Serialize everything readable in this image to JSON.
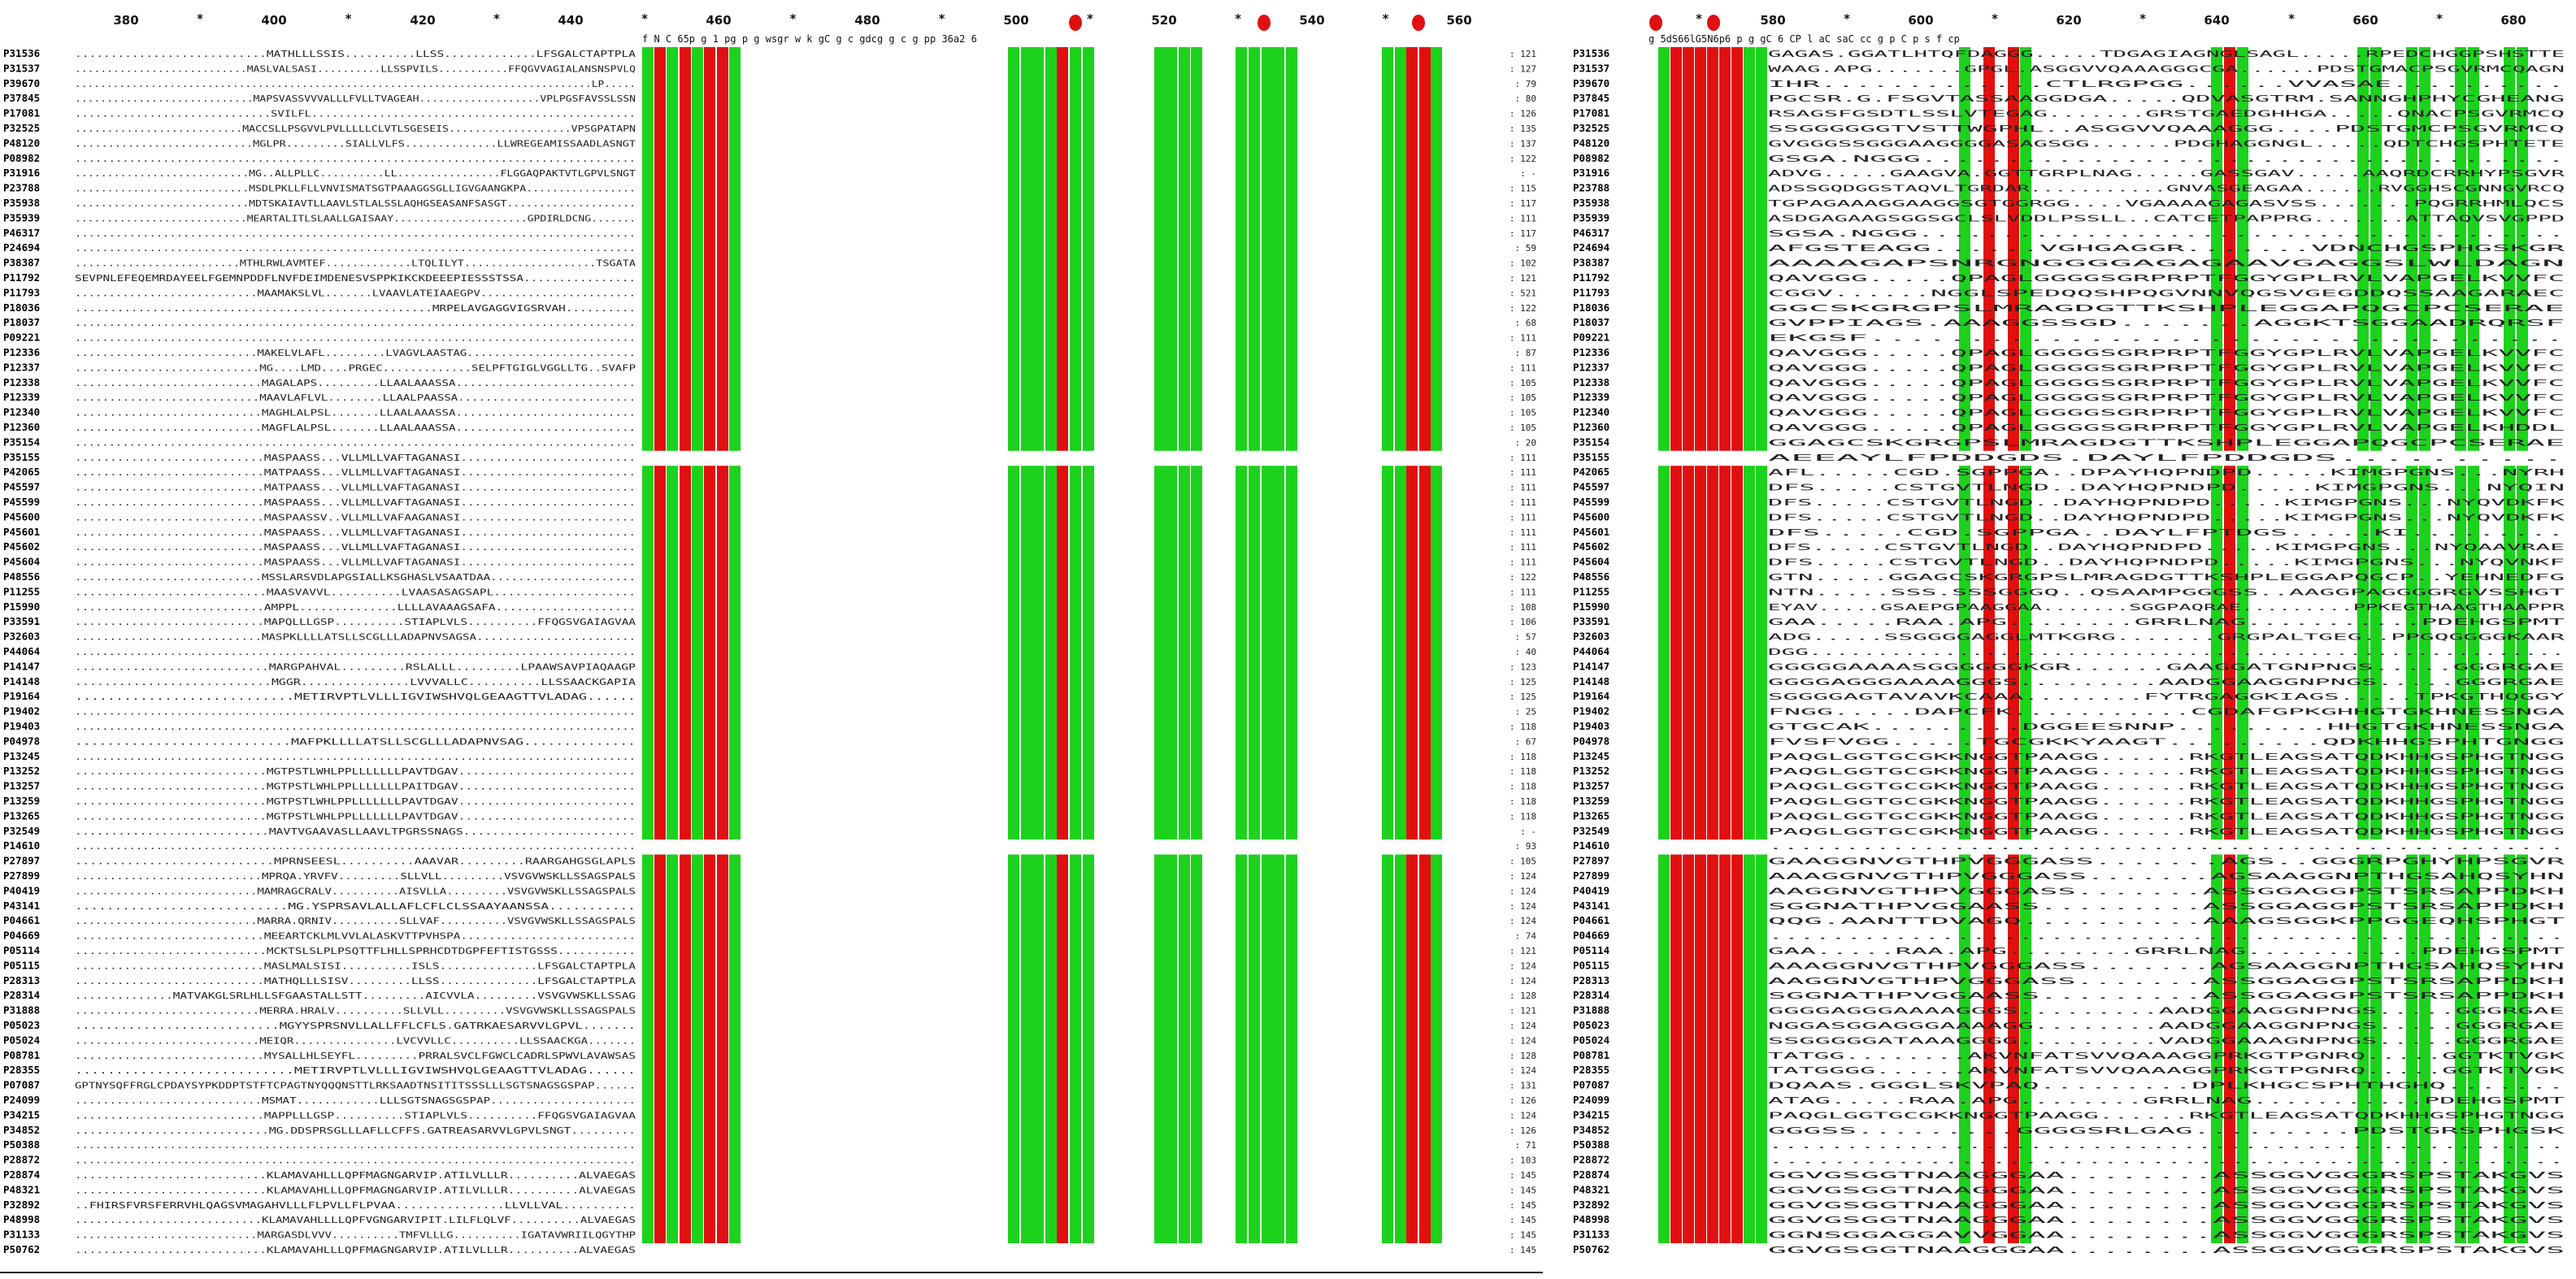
{
  "left_panel": {
    "positions": [
      "380",
      "400",
      "420",
      "440",
      "460",
      "480",
      "500",
      "520",
      "540",
      "560"
    ],
    "annotation": "f  N C   65p        g  1 pg     p g  wsgr w k gC        g  c  gdcg  g  c g   pp 36a2  6",
    "accessions": [
      "P31536",
      "P31537",
      "P39670",
      "P37845",
      "P17081",
      "P32525",
      "P48120",
      "P08982",
      "P31916",
      "P23788",
      "P35938",
      "P35939",
      "P46317",
      "P24694",
      "P38387",
      "P11792",
      "P11793",
      "P18036",
      "P18037",
      "P09221",
      "P12336",
      "P12337",
      "P12338",
      "P12339",
      "P12340",
      "P12360",
      "P35154",
      "P35155",
      "P42065",
      "P45597",
      "P45599",
      "P45600",
      "P45601",
      "P45602",
      "P45604",
      "P48556",
      "P11255",
      "P15990",
      "P33591",
      "P32603",
      "P44064",
      "P14147",
      "P14148",
      "P19164",
      "P19402",
      "P19403",
      "P04978",
      "P13245",
      "P13252",
      "P13257",
      "P13259",
      "P13265",
      "P32549",
      "P14610",
      "P27897",
      "P27899",
      "P40419",
      "P43141",
      "P04661",
      "P04669",
      "P05114",
      "P05115",
      "P28313",
      "P28314",
      "P31888",
      "P05023",
      "P05024",
      "P08781",
      "P28355",
      "P07087",
      "P24099",
      "P34215",
      "P34852",
      "P50388",
      "P28872",
      "P28874",
      "P48321",
      "P32892",
      "P48998",
      "P31133",
      "P50762"
    ],
    "counts": [
      "121",
      "127",
      "79",
      "80",
      "126",
      "135",
      "137",
      "122",
      "-",
      "115",
      "117",
      "111",
      "117",
      "59",
      "102",
      "121",
      "521",
      "122",
      "68",
      "111",
      "87",
      "111",
      "105",
      "105",
      "105",
      "105",
      "20",
      "111",
      "111",
      "111",
      "111",
      "111",
      "111",
      "111",
      "111",
      "122",
      "111",
      "108",
      "106",
      "57",
      "40",
      "123",
      "125",
      "125",
      "25",
      "118",
      "67",
      "118",
      "118",
      "118",
      "118",
      "118",
      "-",
      "93",
      "105",
      "124",
      "124",
      "124",
      "124",
      "74",
      "121",
      "124",
      "124",
      "128",
      "121",
      "124",
      "124",
      "128",
      "124",
      "131",
      "126",
      "124",
      "126",
      "71",
      "103",
      "145",
      "145",
      "145",
      "145",
      "145",
      "145",
      "-"
    ],
    "sequences": [
      "...........................MATHLLLSSIS..........LLSS.............LFSGALCTAPTPLA",
      "...........................MASLVALSASI..........LLSSPVILS...........FFQGVVAGIALANSNSPVLQ",
      "..................................................................................LP.....",
      "............................MAPSVASSVVVALLLFVLLTVAGEAH...................VPLPGSFAVSSLSSN",
      ".............................SVILFL................................................",
      "..........................MACCSLLPSGVVLPVLLLLLCLVTLSGESEIS...................VPSGPATAPN",
      "...........................MGLPR.........SIALLVLFS..............LLWREGEAMISSAADLASNGT",
      "...................................................................................",
      "...........................MG..ALLPLLC..........LL................FLGGAQPAKTVTLGPVLSNGT",
      "...........................MSDLPKLLFLLVNVISMATSGTPAAAGGSGLLIGVGAANGKPA.................",
      "...........................MDTSKAIAVTLLAAVLSTLALSSLAQHGSEASANFSASGT....................",
      "...........................MEARTALITLSLAALLGAISAAY.....................GPDIRLDCNG.......",
      "...................................................................................",
      "...................................................................................",
      ".........................MTHLRWLAVMTEF.............LTQLILYT....................TSGATA",
      "SEVPNLEFEQEMRDAYEELFGEMNPDDFLNVFDEIMDENESVSPPKIKCKDEEEPIESSSTSSA................",
      "...........................MAAMAKSLVL.......LVAAVLATEIAAEGPV.......................",
      "...................................................MRPELAVGAGGVIGSRVAH..........",
      "...................................................................................",
      "...................................................................................",
      "...........................MAKELVLAFL.........LVAGVLAASTAG.........................",
      "...........................MG....LMD....PRGEC.............SELPFTGIGLVGGLLTG..SVAFP",
      "...........................MAGALAPS.........LLAALAAASSA..........................",
      "...........................MAAVLAFLVL........LLAALPAASSA..........................",
      "...........................MAGHLALPSL.......LLAALAAASSA..........................",
      "...........................MAGFLALPSL.......LLAALAAASSA..........................",
      "...................................................................................",
      "...........................MASPAASS...VLLMLLVAFTAGANASI.........................",
      "...........................MATPAASS...VLLMLLVAFTAGANASI.........................",
      "...........................MATPAASS...VLLMLLVAFTAGANASI.........................",
      "...........................MASPAASS...VLLMLLVAFTAGANASI.........................",
      "...........................MASPAASSV..VLLMLLVAFAAGANASI.........................",
      "...........................MASPAASS...VLLMLLVAFTAGANASI.........................",
      "...........................MASPAASS...VLLMLLVAFTAGANASI.........................",
      "...........................MASPAASS...VLLMLLVAFTAGANASI.........................",
      "...........................MSSLARSVDLAPGSIALLKSGHASLVSAATDAA.....................",
      "...........................MAASVAVVL..........LVAASASAGSAPL....................",
      "...........................AMPPL..............LLLLAVAAAGSAFA....................",
      "...........................MAPQLLLGSP..........STIAPLVLS..........FFQGSVGAIAGVAA",
      "...........................MASPKLLLLATSLLSCGLLLADAPNVSAGSA.......................",
      "...................................................................................",
      "...........................MARGPAHVAL.........RSLALLL.........LPAAWSAVPIAQAAGP",
      "...........................MGGR...............LVVVALLC..........LLSSAACKGAPIA",
      "...........................METIRVPTLVLLLIGVIWSHVQLGEAAGTTVLADAG......",
      "...................................................................................",
      "...................................................................................",
      "...........................MAFPKLLLLATSLLSCGLLLADAPNVSAG..............",
      "...................................................................................",
      "...........................MGTPSTLWHLPPLLLLLLLPAVTDGAV.........................",
      "...........................MGTPSTLWHLPPLLLLLLLPAITDGAV.........................",
      "...........................MGTPSTLWHLPPLLLLLLLPAVTDGAV.........................",
      "...........................MGTPSTLWHLPPLLLLLLLPAVTDGAV.........................",
      "...........................MAVTVGAAVASLLAAVLTPGRSSNAGS........................",
      "...................................................................................",
      "...........................MPRNSEESL..........AAAVAR.........RAARGAHGSGLAPLS",
      "...........................MPRQA.YRVFV.........SLLVLL.........VSVGVWSKLLSSAGSPALS",
      "...........................MAMRAGCRALV..........AISVLLA.........VSVGVWSKLLSSAGSPALS",
      "...........................MG.YSPRSAVLALLAFLCFLCLSSAAYAANSSA...........",
      "...........................MARRA.QRNIV..........SLLVAF..........VSVGVWSKLLSSAGSPALS",
      "...........................MEEARTCKLMLVVLALASKVTTPVHSPA.........................",
      "...........................MCKTSLSLPLPSQTTFLHLLSPRHCDTDGPFEFTISTGSSS...........",
      "...........................MASLMALSISI..........ISLS..............LFSGALCTAPTPLA",
      "...........................MATHQLLLSISV.........LLSS..............LFSGALCTAPTPLA",
      "..............MATVAKGLSRLHLLSFGAASTALLSTT.........AICVVLA.........VSVGVWSKLLSSAG",
      "...........................MERRA.HRALV..........SLLVLL.........VSVGVWSKLLSSAGSPALS",
      "...........................MGYYSPRSNVLLALLFFLCFLS.GATRKAESARVVLGPVL.......",
      "...........................MEIQR...............LVCVVLLC..........LLSSAACKGA.......",
      "...........................MYSALLHLSEYFL.........PRRALSVCLFGWCLCADRLSPWVLAVAWSAS",
      "...........................METIRVPTLVLLLIGVIWSHVQLGEAAGTTVLADAG......",
      "GPTNYSQFFRGLCPDAYSYPKDDPTSTFTCPAGTNYQQQNSTTLRKSAADTNSITITSSSLLLSGTSNAGSGSPAP......",
      "...........................MSMAT............LLLSGTSNAGSGSPAP.....................",
      "...........................MAPPLLLGSP..........STIAPLVLS..........FFQGSVGAIAGVAA",
      "...........................MG.DDSPRSGLLLAFLLCFFS.GATREASARVVLGPVLSNGT.........",
      "...................................................................................",
      "...................................................................................",
      "...........................KLAMAVAHLLLQPFMAGNGARVIP.ATILVLLLR..........ALVAEGAS",
      "...........................KLAMAVAHLLLQPFMAGNGARVIP.ATILVLLLR..........ALVAEGAS",
      "..FHIRSFVRSFERRVHLQAGSVMAGAHVLLLFLPVLLFLPVAA...............LLVLLVAL..........",
      "...........................KLAMAVAHLLLLQPFVGNGARVIPIT.LILFLQLVF..........ALVAEGAS",
      "...........................MARGASDLVVV..........TMFVLLLG..........IGATAVWRIILQGYTHP",
      "...........................KLAMAVAHLLLQPFMAGNGARVIP.ATILVLLLR..........ALVAEGAS",
      "..................................................................................."
    ],
    "legend_note": ""
  },
  "right_panel": {
    "positions": [
      "580",
      "600",
      "620",
      "640",
      "660",
      "680"
    ],
    "annotation": "g  5dS66lG5N6p6    p         g   gC   6   CP  l                       aC saC           cc g   p C p  s  f   cp",
    "accessions": [
      "P31536",
      "P31537",
      "P39670",
      "P37845",
      "P17081",
      "P32525",
      "P48120",
      "P08982",
      "P31916",
      "P23788",
      "P35938",
      "P35939",
      "P46317",
      "P24694",
      "P38387",
      "P11792",
      "P11793",
      "P18036",
      "P18037",
      "P09221",
      "P12336",
      "P12337",
      "P12338",
      "P12339",
      "P12340",
      "P12360",
      "P35154",
      "P35155",
      "P42065",
      "P45597",
      "P45599",
      "P45600",
      "P45601",
      "P45602",
      "P45604",
      "P48556",
      "P11255",
      "P15990",
      "P33591",
      "P32603",
      "P44064",
      "P14147",
      "P14148",
      "P19164",
      "P19402",
      "P19403",
      "P04978",
      "P13245",
      "P13252",
      "P13257",
      "P13259",
      "P13265",
      "P32549",
      "P14610",
      "P27897",
      "P27899",
      "P40419",
      "P43141",
      "P04661",
      "P04669",
      "P05114",
      "P05115",
      "P28313",
      "P28314",
      "P31888",
      "P05023",
      "P05024",
      "P08781",
      "P28355",
      "P07087",
      "P24099",
      "P34215",
      "P34852",
      "P50388",
      "P28872",
      "P28874",
      "P48321",
      "P32892",
      "P48998",
      "P31133",
      "P50762"
    ],
    "sequences": [
      "GAGAS.GGATLHTQFDAGGG.....TDGAGIAGNGLSAGL.....RPEDCHGGPSHSTTE",
      "WAAG.APG.......GPGL.ASGGVVQAAAGGGCGA......PDSTGMACPSGVRMCQAGN",
      "IHR.............CTLRGPGG......VVASAE..........",
      "PGCSR.G.FSGVTASSAAGGDGA.....QDVASGTRM.SANNGHPHYCGHEANG",
      "RSAGSFGSDTLSSLVTEGAG.......GRSTGAEDGHHGA.....QNACPSGVRMCQ",
      "SSGGGGGGTVSTTWGPHL..ASGGVVQAAAGGG....PDSTGMCPSGVRMCQ",
      "GVGGGSSGGGAAGGGGASAGSGG......PDGHAGGNGL.....QDTCHGSPHTETE",
      "GSGA.NGGG......................................",
      "ADVG.....GAAGVA.GGTTGRPLNAG.....GASSGAV.....AAQRDCRRHYPSGVR",
      "ADSSGQDGGSTAQVLTGRDAR...........GNVASGEAGAA......RVGGHSCGNNGVRCQ",
      "TGPAGAAAGGAAGGSGTGGRGG....VGAAAAGAGASVSS.......PQGRRHMLQCS",
      "ASDGAGAAGSGGSGCLSLVDDLPSSLL..CATCETPAPPRG.......ATTAQVSVGPPD",
      "SGSA.NGGG.......................................",
      "AFGSTEAGG......VGHGAGGR.......VDNCHGSPHGSKGR",
      "AAAAGAPSNRGNGGGGAGAGAAVGAGGSLWLDAGN",
      "QAVGGG.....QPAGLGGGGSGRPRPTFGGYGPLRVLVAPGELKVVFC",
      "CGGV......NGGLSPEDQQSHPQGVNNVQGSVGEGDDQSSAAGARAEC",
      "GGCSKGRGPSLMRAGDGTTKSHPLEGGAPQGCPCSERAE",
      "GVPPIAGS.AAAGGSSGD.......AGGKTSGGAADRQRSF",
      "EKGSF...................................",
      "QAVGGG.....QPAGLGGGGSGRPRPTFGGYGPLRVLVAPGELKVVFC",
      "QAVGGG.....QPAGLGGGGSGRPRPTFGGYGPLRVLVAPGELKVVFC",
      "QAVGGG.....QPAGLGGGGSGRPRPTFGGYGPLRVLVAPGELKVVFC",
      "QAVGGG.....QPAGLGGGGSGRPRPTFGGYGPLRVLVAPGELKVVFC",
      "QAVGGG.....QPAGLGGGGSGRPRPTFGGYGPLRVLVAPGELKVVFC",
      "QAVGGG.....QPAGLGGGGSGRPRPTFGGYGPLRVLVAPGELKHDDL",
      "GGAGCSKGRGPSLMRAGDGTTKSHPLEGGAPQGCPCSERAE",
      "AEEAYLFPDDGDS.DAYLFPDDGDS..........",
      "AFL.....CGD.SGPPGA..DPAYHQPNDPD.....KIMGPGNS...NYRH",
      "DFS.....CSTGVTLNGD..DAYHQPNDPD.....KIMGPGNS...NYQIN",
      "DFS.....CSTGVTLNGD..DAYHQPNDPD.....KIMGPGNS...NYQVDKFK",
      "DFS.....CSTGVTLNGD..DAYHQPNDPD.....KIMGPGNS...NYQVDKFK",
      "DFS.....CGD.SGPPGA..DAYLFPTDGS.....KI.........",
      "DFS.....CSTGVTLNGD..DAYHQPNDPD.....KIMGPGNS...NYQAAVRAE",
      "DFS.....CSTGVTLNGD..DAYHQPNDPD.....KIMGPGNS...NYQVNKF",
      "GTN.....GGAGCSKGRGPSLMRAGDGTTKSHPLEGGAPQGCP..YEHNEDFG",
      "NTN.....SSS.SSSGGGQ..QSAAMPGGGSS..AAGGPAGGGGRGVSSHGT",
      "EYAV.....GSAEPGPAAGGAA.......SGGPAQRAE.........PPKEGTHAAGTHAAPPR",
      "GAA.....RAA.APG........GRRLNAG...........PDEHGSPMT",
      "ADG.....SSGGGGAGGLMTKGRG.......GRGPALTGEG..PPGQGGGGKAAR",
      "DGG........................................................",
      "GGGGGAAAASGGGGGGKGR......GAAGGATGNPNGS.....GGGRGAE",
      "GGGGAGGGAAAAGGGS.........AADGGAAGGNPNGS.....GGGRGAE",
      "SGGGGAGTAVAVKCAAA........FYTRGAGGKIAGS.....TPKGTHQGGY",
      "FNGG.....DAPCFK...........CGDAFGPKGHHGTGKHNESSNGA",
      "GTGCAK.........DGGEESNNP.........HHGTGKHNESSNGA",
      "FVSFVGG.....TGCGKKYAAGT.........QDKHHGSPHTGNGG",
      "PAQGLGGTGCGKKNGGTPAAGG......RKGTLEAGSATQDKHHGSPHGTNGG",
      "PAQGLGGTGCGKKNGGTPAAGG......RKGTLEAGSATQDKHHGSPHGTNGG",
      "PAQGLGGTGCGKKNGGTPAAGG......RKGTLEAGSATQDKHHGSPHGTNGG",
      "PAQGLGGTGCGKKNGGTPAAGG......RKGTLEAGSATQDKHHGSPHGTNGG",
      "PAQGLGGTGCGKKNGGTPAAGG......RKGTLEAGSATQDKHHGSPHGTNGG",
      "PAQGLGGTGCGKKNGGTPAAGG......RKGTLEAGSATQDKHHGSPHGTNGG",
      "....................................................",
      "GAAGGNVGTHPVGGGASS.......AGS..GGGRPGHYHPSGVR",
      "AAAGGNVGTHPVGGGASS.......AGSAAGGNPTHGSAHQSYHN",
      "AAGGNVGTHPVGGGASS.......ASSGGAGGPSTSRSAPPDKH",
      "SGGNATHPVGGAASS.........ASSGGAGGPSTSRSAPPDKH",
      "QQG.AANTTDVAGQ..........AAAGSGGKPPGGEQHSPHGT",
      "...................................................",
      "GAA.....RAA.APG........GRRLNAG...........PDEHGSPMT",
      "AAAGGNVGTHPVGGGASS.......AGSAAGGNPTHGSAHQSYHN",
      "AAGGNVGTHPVGGGASS.......ASSGGAGGPSTSRSAPPDKH",
      "SGGNATHPVGGAASS.........ASSGGAGGPSTSRSAPPDKH",
      "GGGGAGGGAAAAGGGS.........AADGGAAGGNPNGS.....GGGRGAE",
      "NGGASGGAGGGAAAAGG........AADGGAAGGNPNGS.....GGGRGAE",
      "SSGGGGGATAAAGGGG.........VADGGAAAGNPNGS.....GGGRGAE",
      "TATGG........AKVNFATSVVQAAAGGPRKGTPGNRQ.....GGTKTVGK",
      "TATGGGG......AKVNFATSVVQAAAGGPRKGTPGNRQ.....GGTKTVGK",
      "DQAAS.GGGLSKVPAQ.........DPLKHGCSPHTHGHQ.......",
      "ATAG.....RAA.APG........GRRLNAG...........PDEHGSPMT",
      "PAQGLGGTGCGKKNGGTPAAGG......RKGTLEAGSATQDKHHGSPHGTNGG",
      "GGGSS.........GGGGSRLGAG.........PDSTGRSPHGSK",
      "....................................................",
      "..................................................",
      "GGVGSGGTNAAGGGAA........ASSGGVGGGRSPSTAKGVS",
      "GGVGSGGTNAAGGGAA........ASSGGVGGGRSPSTAKGVS",
      "GGVGSGGTNAAGGGAA........ASSGGVGGGRSPSTAKGVS",
      "GGVGSGGTNAAGGGAA........ASSGGVGGGRSPSTAKGVS",
      "GGNSGGAGGAVVGGAA........ASSGGVGGGRSPSTAKGVS",
      "GGVGSGGTNAAGGGAA........ASSGGVGGGRSPSTAKGVS",
      "...................................................."
    ]
  }
}
